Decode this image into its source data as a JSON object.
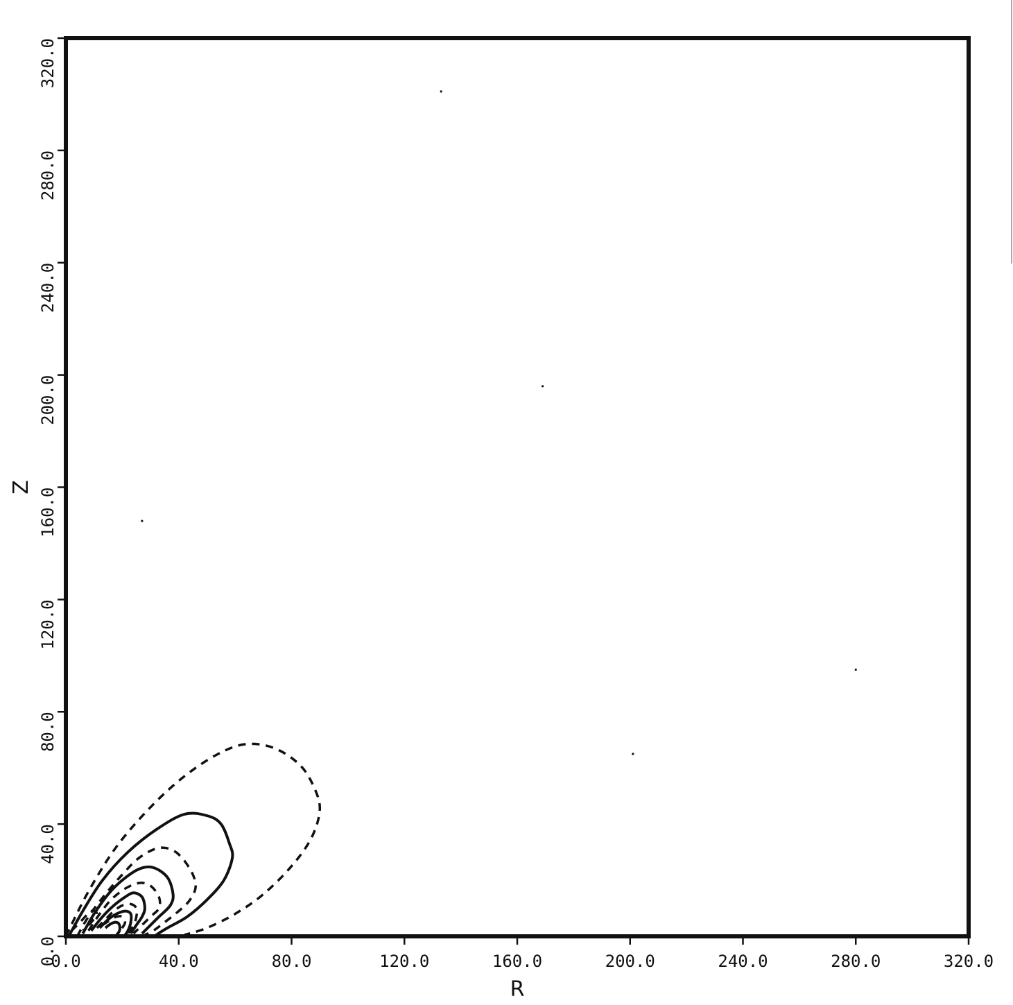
{
  "chart_data": {
    "type": "contour",
    "title": "",
    "xlabel": "R",
    "ylabel": "Z",
    "xlim": [
      0,
      320
    ],
    "ylim": [
      0,
      320
    ],
    "xticks": [
      0,
      40,
      80,
      120,
      160,
      200,
      240,
      280,
      320
    ],
    "yticks": [
      0,
      40,
      80,
      120,
      160,
      200,
      240,
      280,
      320
    ],
    "xtick_labels": [
      "0.0",
      "40.0",
      "80.0",
      "120.0",
      "160.0",
      "200.0",
      "240.0",
      "280.0",
      "320.0"
    ],
    "ytick_labels": [
      "0.0",
      "40.0",
      "80.0",
      "120.0",
      "160.0",
      "200.0",
      "240.0",
      "280.0",
      "320.0"
    ],
    "grid": false,
    "contours": [
      {
        "style": "dashed",
        "points": [
          [
            0,
            0
          ],
          [
            8,
            16
          ],
          [
            18,
            32
          ],
          [
            30,
            46
          ],
          [
            42,
            57
          ],
          [
            54,
            65
          ],
          [
            64,
            68.5
          ],
          [
            74,
            67
          ],
          [
            83,
            61
          ],
          [
            88,
            53
          ],
          [
            90,
            45
          ],
          [
            87,
            35
          ],
          [
            80,
            25
          ],
          [
            70,
            15
          ],
          [
            60,
            8
          ],
          [
            50,
            3
          ],
          [
            42,
            0.5
          ]
        ]
      },
      {
        "style": "solid",
        "points": [
          [
            1,
            0
          ],
          [
            6,
            9
          ],
          [
            13,
            20
          ],
          [
            22,
            30
          ],
          [
            32,
            38
          ],
          [
            42,
            43.5
          ],
          [
            50,
            43
          ],
          [
            55,
            40
          ],
          [
            58,
            33
          ],
          [
            59,
            28
          ],
          [
            56,
            20
          ],
          [
            50,
            13
          ],
          [
            43,
            7
          ],
          [
            36,
            3
          ],
          [
            32,
            0.5
          ]
        ]
      },
      {
        "style": "dashed",
        "points": [
          [
            4,
            0
          ],
          [
            8,
            7
          ],
          [
            14,
            15
          ],
          [
            20,
            22
          ],
          [
            26,
            28
          ],
          [
            33,
            31.5
          ],
          [
            39,
            30
          ],
          [
            44,
            24
          ],
          [
            46,
            18
          ],
          [
            44,
            13
          ],
          [
            40,
            9
          ],
          [
            35,
            5
          ],
          [
            31,
            2
          ],
          [
            28,
            0.5
          ]
        ]
      },
      {
        "style": "solid",
        "points": [
          [
            6,
            1
          ],
          [
            10,
            8
          ],
          [
            15,
            15
          ],
          [
            20,
            20
          ],
          [
            26,
            24
          ],
          [
            31,
            24.5
          ],
          [
            36,
            21
          ],
          [
            38,
            15
          ],
          [
            37,
            11
          ],
          [
            33,
            7
          ],
          [
            30,
            4
          ],
          [
            27,
            1
          ]
        ]
      },
      {
        "style": "dashed",
        "points": [
          [
            8,
            2
          ],
          [
            12,
            8
          ],
          [
            16,
            13
          ],
          [
            21,
            17
          ],
          [
            26,
            19
          ],
          [
            30,
            18
          ],
          [
            33,
            14
          ],
          [
            33,
            10
          ],
          [
            30,
            7
          ],
          [
            27,
            4
          ],
          [
            24,
            1
          ]
        ]
      },
      {
        "style": "solid",
        "points": [
          [
            9,
            2
          ],
          [
            13,
            7
          ],
          [
            17,
            11
          ],
          [
            21,
            14
          ],
          [
            24,
            15.5
          ],
          [
            27,
            14
          ],
          [
            28,
            10
          ],
          [
            27,
            7
          ],
          [
            25,
            4
          ],
          [
            23,
            1
          ]
        ]
      },
      {
        "style": "dashed",
        "points": [
          [
            11,
            3
          ],
          [
            14,
            6
          ],
          [
            17,
            9
          ],
          [
            20,
            11
          ],
          [
            23,
            11.5
          ],
          [
            25,
            10
          ],
          [
            25,
            7
          ],
          [
            24,
            4
          ],
          [
            22,
            1
          ]
        ]
      },
      {
        "style": "solid",
        "points": [
          [
            12,
            3
          ],
          [
            15,
            6
          ],
          [
            18,
            8
          ],
          [
            21,
            9
          ],
          [
            23,
            8
          ],
          [
            23,
            5
          ],
          [
            22,
            2
          ],
          [
            21,
            0.5
          ]
        ]
      },
      {
        "style": "dashed",
        "points": [
          [
            13,
            4
          ],
          [
            16,
            6
          ],
          [
            18,
            7
          ],
          [
            20,
            7
          ],
          [
            21,
            5
          ],
          [
            20,
            3
          ],
          [
            19,
            1
          ]
        ]
      },
      {
        "style": "solid",
        "points": [
          [
            14,
            3
          ],
          [
            16,
            4.5
          ],
          [
            18,
            5
          ],
          [
            19,
            4
          ],
          [
            19,
            2
          ],
          [
            18,
            0.5
          ]
        ]
      },
      {
        "style": "dashed",
        "points": [
          [
            2,
            2
          ],
          [
            5,
            5
          ],
          [
            9,
            9
          ],
          [
            11,
            8
          ],
          [
            9,
            5
          ],
          [
            6,
            2
          ]
        ]
      }
    ]
  },
  "stray_marks": [
    [
      133,
      301
    ],
    [
      169,
      196
    ],
    [
      27,
      148
    ],
    [
      280,
      95
    ],
    [
      201,
      65
    ]
  ]
}
